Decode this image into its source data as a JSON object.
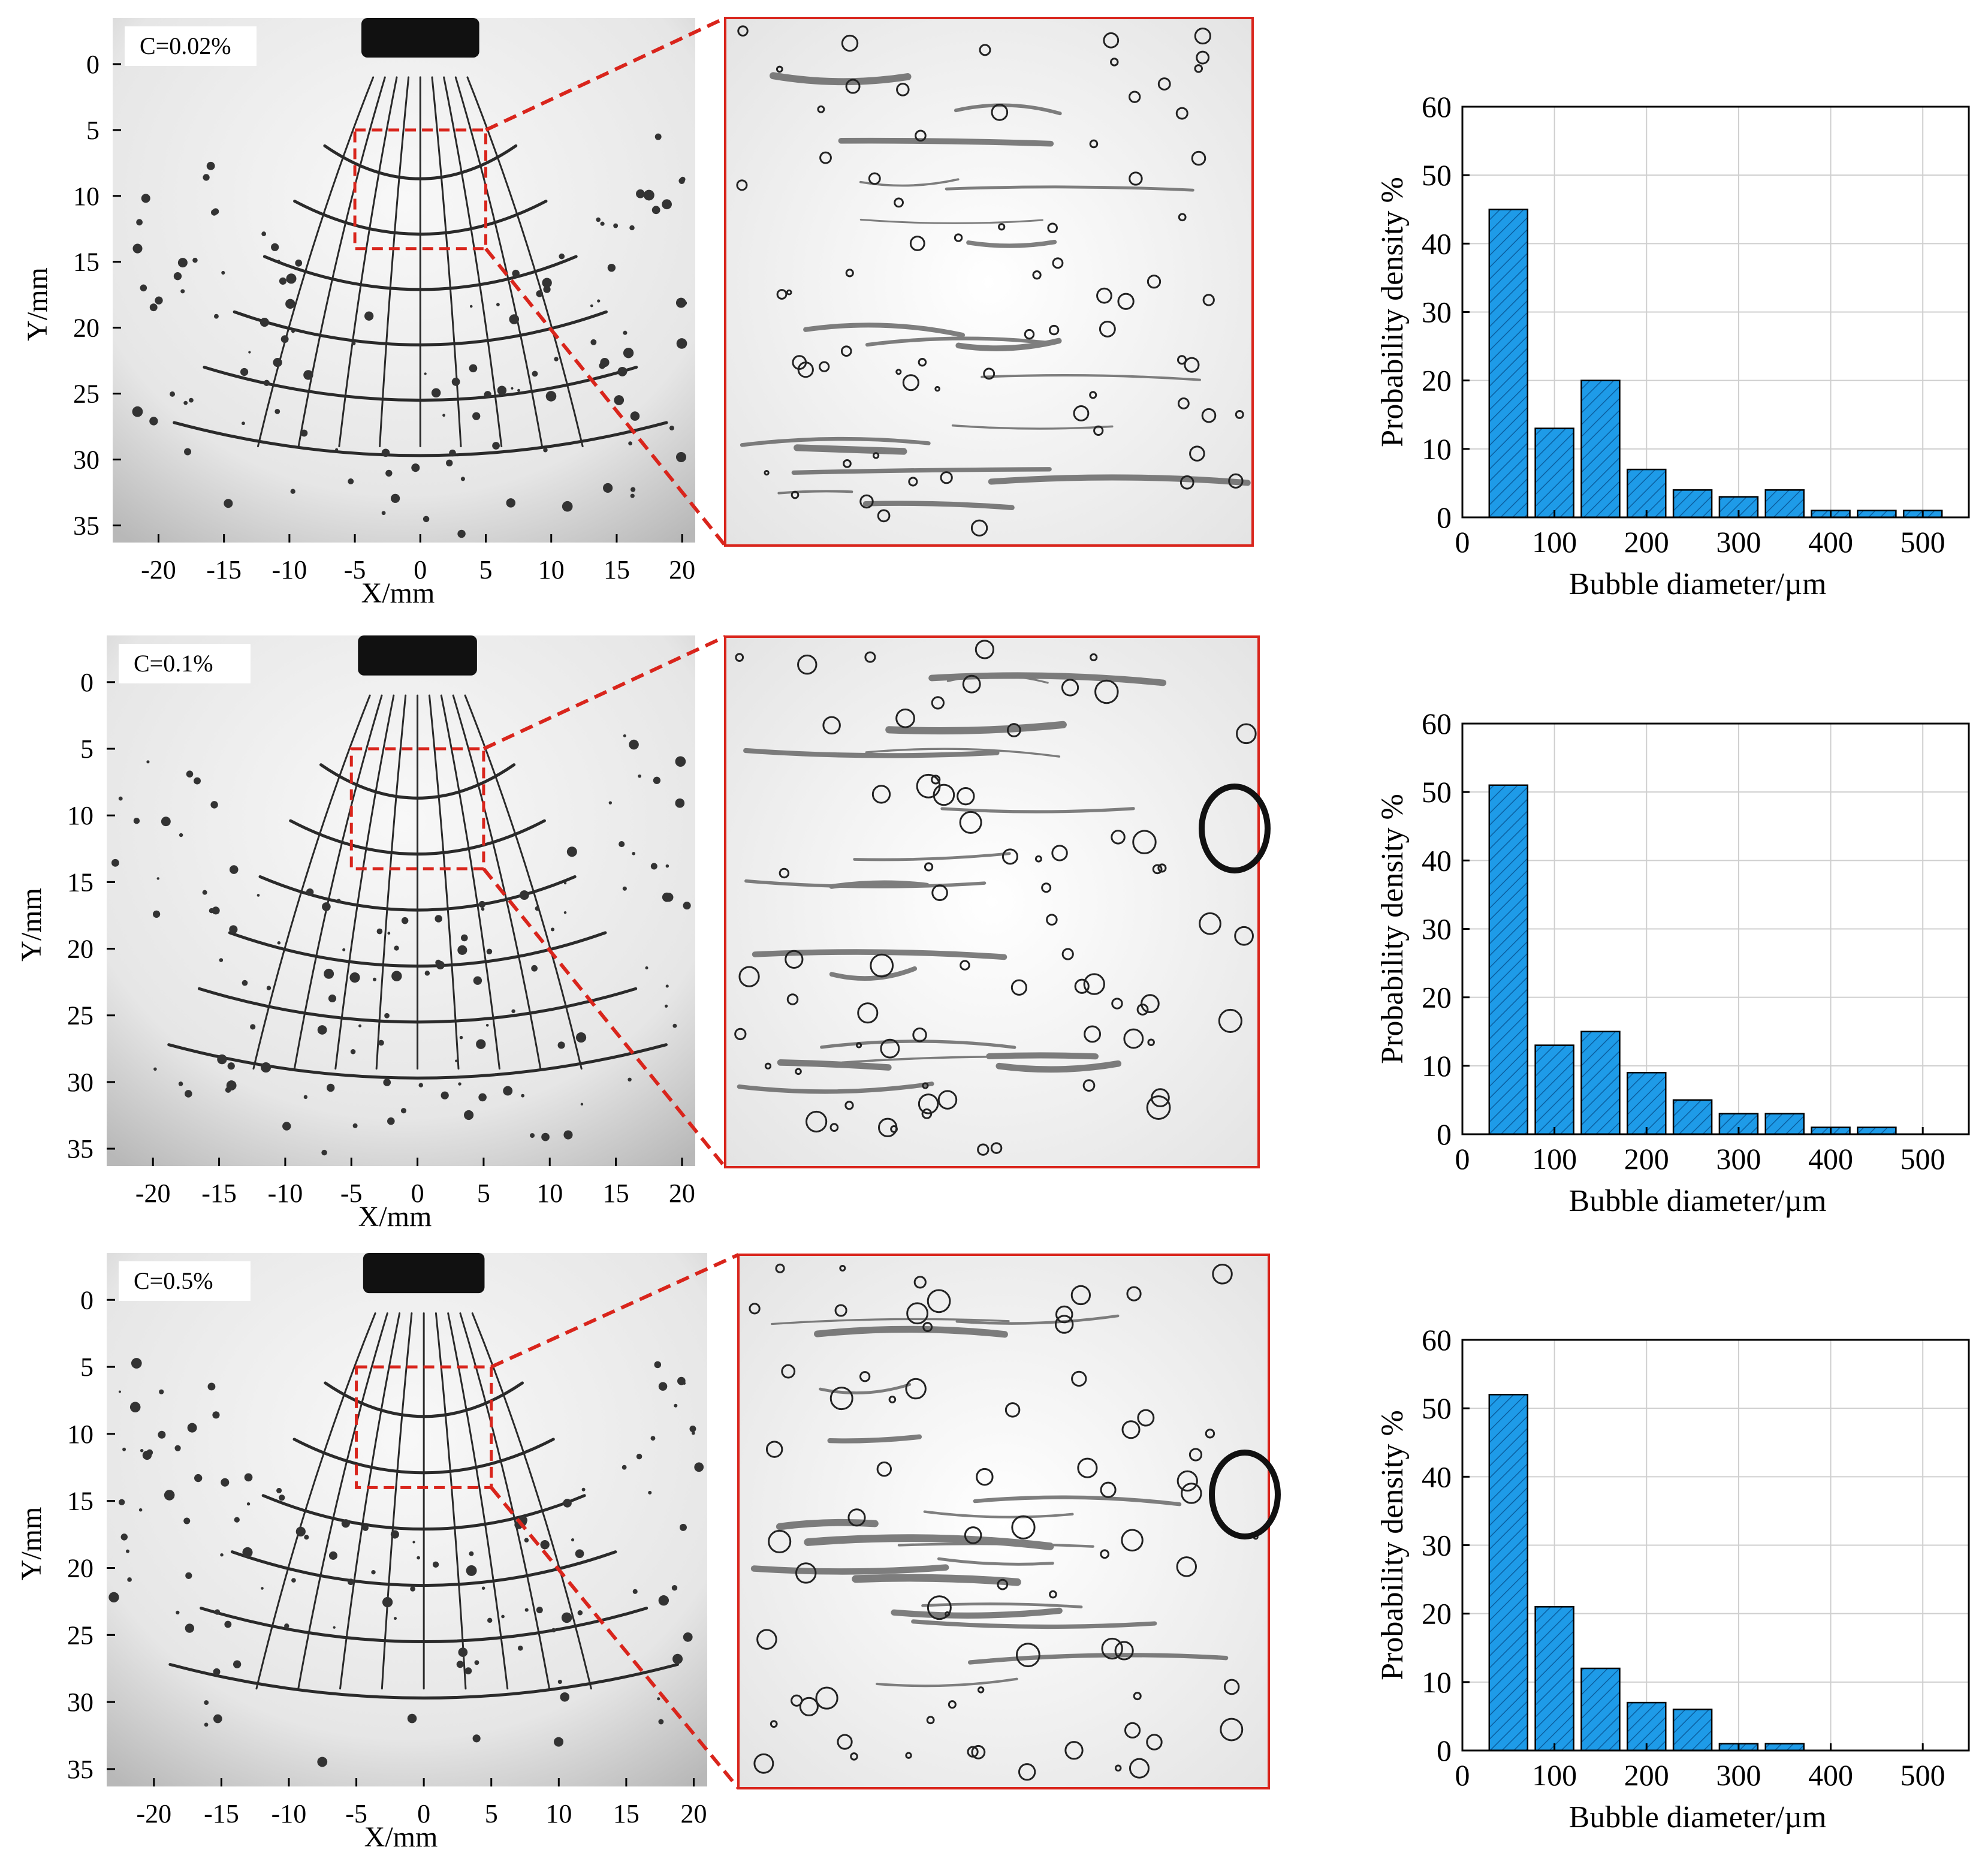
{
  "photo_axes": {
    "xlabel": "X/mm",
    "ylabel": "Y/mm",
    "x_ticks": [
      "-20",
      "-15",
      "-10",
      "-5",
      "0",
      "5",
      "10",
      "15",
      "20"
    ],
    "y_ticks": [
      "0",
      "5",
      "10",
      "15",
      "20",
      "25",
      "30",
      "35"
    ]
  },
  "panels": [
    {
      "label": "C=0.02%"
    },
    {
      "label": "C=0.1%"
    },
    {
      "label": "C=0.5%"
    }
  ],
  "colors": {
    "bar": "#1e9be8",
    "zoom": "#d9251c",
    "grid": "#cfcfcf"
  },
  "chart_data": [
    {
      "type": "bar",
      "categories": [
        "50",
        "100",
        "150",
        "200",
        "250",
        "300",
        "350",
        "400",
        "450",
        "500"
      ],
      "x": [
        50,
        100,
        150,
        200,
        250,
        300,
        350,
        400,
        450,
        500
      ],
      "values": [
        45,
        13,
        20,
        7,
        4,
        3,
        4,
        1,
        1,
        1
      ],
      "xlabel": "Bubble diameter/µm",
      "ylabel": "Probability density %",
      "xlim": [
        0,
        550
      ],
      "ylim": [
        0,
        60
      ],
      "x_ticks": [
        "0",
        "100",
        "200",
        "300",
        "400",
        "500"
      ],
      "y_ticks": [
        "0",
        "10",
        "20",
        "30",
        "40",
        "50",
        "60"
      ],
      "grid": true
    },
    {
      "type": "bar",
      "categories": [
        "50",
        "100",
        "150",
        "200",
        "250",
        "300",
        "350",
        "400",
        "450",
        "500"
      ],
      "x": [
        50,
        100,
        150,
        200,
        250,
        300,
        350,
        400,
        450,
        500
      ],
      "values": [
        51,
        13,
        15,
        9,
        5,
        3,
        3,
        1,
        1,
        0
      ],
      "xlabel": "Bubble diameter/µm",
      "ylabel": "Probability density %",
      "xlim": [
        0,
        550
      ],
      "ylim": [
        0,
        60
      ],
      "x_ticks": [
        "0",
        "100",
        "200",
        "300",
        "400",
        "500"
      ],
      "y_ticks": [
        "0",
        "10",
        "20",
        "30",
        "40",
        "50",
        "60"
      ],
      "grid": true
    },
    {
      "type": "bar",
      "categories": [
        "50",
        "100",
        "150",
        "200",
        "250",
        "300",
        "350",
        "400",
        "450",
        "500"
      ],
      "x": [
        50,
        100,
        150,
        200,
        250,
        300,
        350,
        400,
        450,
        500
      ],
      "values": [
        52,
        21,
        12,
        7,
        6,
        1,
        1,
        0,
        0,
        0
      ],
      "xlabel": "Bubble diameter/µm",
      "ylabel": "Probability density %",
      "xlim": [
        0,
        550
      ],
      "ylim": [
        0,
        60
      ],
      "x_ticks": [
        "0",
        "100",
        "200",
        "300",
        "400",
        "500"
      ],
      "y_ticks": [
        "0",
        "10",
        "20",
        "30",
        "40",
        "50",
        "60"
      ],
      "grid": true
    }
  ]
}
